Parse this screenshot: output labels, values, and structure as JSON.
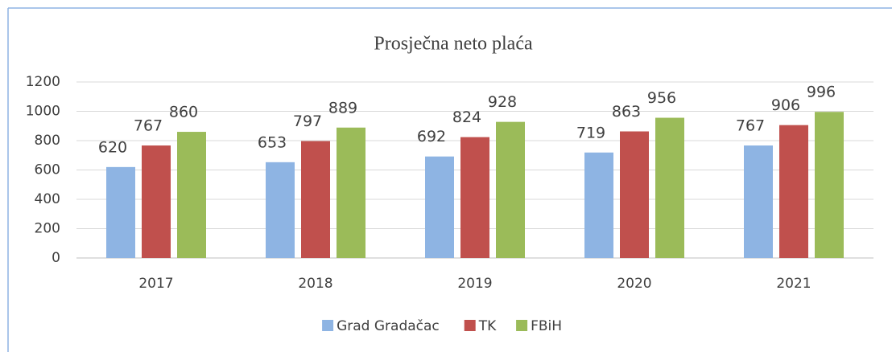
{
  "chart_data": {
    "type": "bar",
    "title": "Prosječna neto plaća",
    "categories": [
      "2017",
      "2018",
      "2019",
      "2020",
      "2021"
    ],
    "series": [
      {
        "name": "Grad Gradačac",
        "color": "#8eb4e3",
        "values": [
          620,
          653,
          692,
          719,
          767
        ]
      },
      {
        "name": "TK",
        "color": "#c0504d",
        "values": [
          767,
          797,
          824,
          863,
          906
        ]
      },
      {
        "name": "FBiH",
        "color": "#9bbb59",
        "values": [
          860,
          889,
          928,
          956,
          996
        ]
      }
    ],
    "ylim": [
      0,
      1200
    ],
    "yticks": [
      0,
      200,
      400,
      600,
      800,
      1000,
      1200
    ],
    "grid": true,
    "legend": "bottom"
  }
}
